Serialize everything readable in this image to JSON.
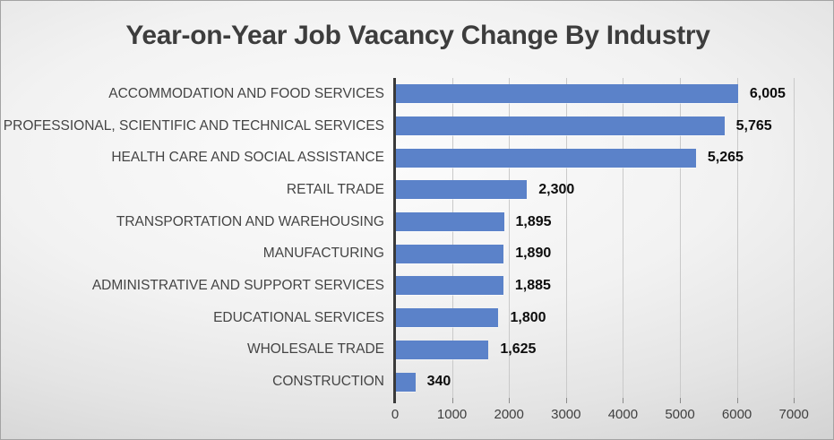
{
  "chart_data": {
    "type": "bar",
    "orientation": "horizontal",
    "title": "Year-on-Year Job Vacancy Change By Industry",
    "categories": [
      "ACCOMMODATION AND FOOD SERVICES",
      "PROFESSIONAL, SCIENTIFIC AND TECHNICAL SERVICES",
      "HEALTH CARE AND SOCIAL ASSISTANCE",
      "RETAIL TRADE",
      "TRANSPORTATION AND WAREHOUSING",
      "MANUFACTURING",
      "ADMINISTRATIVE AND SUPPORT SERVICES",
      "EDUCATIONAL SERVICES",
      "WHOLESALE TRADE",
      "CONSTRUCTION"
    ],
    "values": [
      6005,
      5765,
      5265,
      2300,
      1895,
      1890,
      1885,
      1800,
      1625,
      340
    ],
    "value_labels": [
      "6,005",
      "5,765",
      "5,265",
      "2,300",
      "1,895",
      "1,890",
      "1,885",
      "1,800",
      "1,625",
      "340"
    ],
    "xlabel": "",
    "ylabel": "",
    "xlim": [
      0,
      7000
    ],
    "x_ticks": [
      0,
      1000,
      2000,
      3000,
      4000,
      5000,
      6000,
      7000
    ],
    "x_tick_labels": [
      "0",
      "1000",
      "2000",
      "3000",
      "4000",
      "5000",
      "6000",
      "7000"
    ],
    "grid": true,
    "legend": false,
    "bar_color": "#5b82c9",
    "axis_color": "#3a3a3a",
    "gridline_color": "#c9c9c9",
    "label_color": "#444444",
    "value_label_color": "#0d0d0d",
    "title_color": "#3d3d3d"
  }
}
